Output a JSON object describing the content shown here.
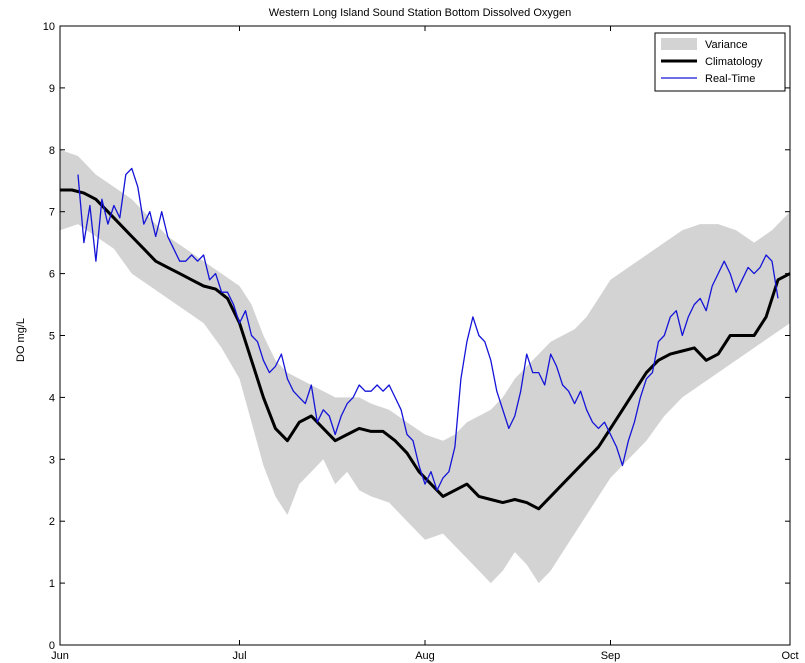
{
  "chart_data": {
    "type": "line",
    "title": "Western Long Island Sound Station Bottom Dissolved Oxygen",
    "xlabel": "",
    "ylabel": "DO mg/L",
    "xlim": [
      0,
      122
    ],
    "ylim": [
      0,
      10
    ],
    "x_ticks": [
      {
        "value": 0,
        "label": "Jun"
      },
      {
        "value": 30,
        "label": "Jul"
      },
      {
        "value": 61,
        "label": "Aug"
      },
      {
        "value": 92,
        "label": "Sep"
      },
      {
        "value": 122,
        "label": "Oct"
      }
    ],
    "y_ticks": [
      0,
      1,
      2,
      3,
      4,
      5,
      6,
      7,
      8,
      9,
      10
    ],
    "legend_position": "top-right",
    "grid": false,
    "series": [
      {
        "name": "Variance",
        "kind": "band",
        "color": "#d3d3d3",
        "x": [
          0,
          3,
          6,
          9,
          12,
          15,
          18,
          21,
          24,
          27,
          30,
          32,
          34,
          36,
          38,
          40,
          42,
          44,
          46,
          48,
          50,
          52,
          55,
          58,
          61,
          64,
          66,
          68,
          70,
          72,
          74,
          76,
          78,
          80,
          82,
          84,
          86,
          88,
          90,
          92,
          95,
          98,
          101,
          104,
          107,
          110,
          113,
          116,
          119,
          122
        ],
        "upper": [
          8.0,
          7.9,
          7.6,
          7.4,
          7.2,
          6.9,
          6.6,
          6.4,
          6.2,
          6.0,
          5.8,
          5.5,
          5.0,
          4.6,
          4.4,
          4.3,
          4.2,
          4.1,
          4.0,
          4.0,
          4.0,
          3.9,
          3.8,
          3.6,
          3.4,
          3.3,
          3.4,
          3.6,
          3.7,
          3.8,
          4.0,
          4.3,
          4.5,
          4.7,
          4.9,
          5.0,
          5.1,
          5.3,
          5.6,
          5.9,
          6.1,
          6.3,
          6.5,
          6.7,
          6.8,
          6.8,
          6.7,
          6.5,
          6.7,
          7.0
        ],
        "lower": [
          6.7,
          6.8,
          6.6,
          6.4,
          6.0,
          5.8,
          5.6,
          5.4,
          5.2,
          4.8,
          4.3,
          3.6,
          2.9,
          2.4,
          2.1,
          2.6,
          2.8,
          3.0,
          2.6,
          2.8,
          2.5,
          2.4,
          2.3,
          2.0,
          1.7,
          1.8,
          1.6,
          1.4,
          1.2,
          1.0,
          1.2,
          1.5,
          1.3,
          1.0,
          1.2,
          1.5,
          1.8,
          2.1,
          2.4,
          2.7,
          3.0,
          3.3,
          3.7,
          4.0,
          4.2,
          4.4,
          4.6,
          4.8,
          5.0,
          5.2
        ]
      },
      {
        "name": "Climatology",
        "kind": "line",
        "color": "#000000",
        "x": [
          0,
          2,
          4,
          6,
          8,
          10,
          12,
          14,
          16,
          18,
          20,
          22,
          24,
          26,
          28,
          30,
          32,
          34,
          36,
          38,
          40,
          42,
          44,
          46,
          48,
          50,
          52,
          54,
          56,
          58,
          60,
          62,
          64,
          66,
          68,
          70,
          72,
          74,
          76,
          78,
          80,
          82,
          84,
          86,
          88,
          90,
          92,
          94,
          96,
          98,
          100,
          102,
          104,
          106,
          108,
          110,
          112,
          114,
          116,
          118,
          120,
          122
        ],
        "y": [
          7.35,
          7.35,
          7.3,
          7.2,
          7.0,
          6.8,
          6.6,
          6.4,
          6.2,
          6.1,
          6.0,
          5.9,
          5.8,
          5.75,
          5.6,
          5.2,
          4.6,
          4.0,
          3.5,
          3.3,
          3.6,
          3.7,
          3.5,
          3.3,
          3.4,
          3.5,
          3.45,
          3.45,
          3.3,
          3.1,
          2.8,
          2.6,
          2.4,
          2.5,
          2.6,
          2.4,
          2.35,
          2.3,
          2.35,
          2.3,
          2.2,
          2.4,
          2.6,
          2.8,
          3.0,
          3.2,
          3.5,
          3.8,
          4.1,
          4.4,
          4.6,
          4.7,
          4.75,
          4.8,
          4.6,
          4.7,
          5.0,
          5.0,
          5.0,
          5.3,
          5.9,
          6.0
        ]
      },
      {
        "name": "Real-Time",
        "kind": "line",
        "color": "#1414d8",
        "x": [
          3,
          4,
          5,
          6,
          7,
          8,
          9,
          10,
          11,
          12,
          13,
          14,
          15,
          16,
          17,
          18,
          19,
          20,
          21,
          22,
          23,
          24,
          25,
          26,
          27,
          28,
          29,
          30,
          31,
          32,
          33,
          34,
          35,
          36,
          37,
          38,
          39,
          40,
          41,
          42,
          43,
          44,
          45,
          46,
          47,
          48,
          49,
          50,
          51,
          52,
          53,
          54,
          55,
          56,
          57,
          58,
          59,
          60,
          61,
          62,
          63,
          64,
          65,
          66,
          67,
          68,
          69,
          70,
          71,
          72,
          73,
          74,
          75,
          76,
          77,
          78,
          79,
          80,
          81,
          82,
          83,
          84,
          85,
          86,
          87,
          88,
          89,
          90,
          91,
          92,
          93,
          94,
          95,
          96,
          97,
          98,
          99,
          100,
          101,
          102,
          103,
          104,
          105,
          106,
          107,
          108,
          109,
          110,
          111,
          112,
          113,
          114,
          115,
          116,
          117,
          118,
          119,
          120
        ],
        "y": [
          7.6,
          6.5,
          7.1,
          6.2,
          7.2,
          6.8,
          7.1,
          6.9,
          7.6,
          7.7,
          7.4,
          6.8,
          7.0,
          6.6,
          7.0,
          6.6,
          6.4,
          6.2,
          6.2,
          6.3,
          6.2,
          6.3,
          5.9,
          6.0,
          5.7,
          5.7,
          5.5,
          5.2,
          5.4,
          5.0,
          4.9,
          4.6,
          4.4,
          4.5,
          4.7,
          4.3,
          4.1,
          4.0,
          3.9,
          4.2,
          3.6,
          3.8,
          3.7,
          3.4,
          3.7,
          3.9,
          4.0,
          4.2,
          4.1,
          4.1,
          4.2,
          4.1,
          4.2,
          4.0,
          3.8,
          3.4,
          3.3,
          2.9,
          2.6,
          2.8,
          2.5,
          2.7,
          2.8,
          3.2,
          4.3,
          4.9,
          5.3,
          5.0,
          4.9,
          4.6,
          4.1,
          3.8,
          3.5,
          3.7,
          4.1,
          4.7,
          4.4,
          4.4,
          4.2,
          4.7,
          4.5,
          4.2,
          4.1,
          3.9,
          4.1,
          3.8,
          3.6,
          3.5,
          3.6,
          3.4,
          3.2,
          2.9,
          3.3,
          3.6,
          4.0,
          4.3,
          4.4,
          4.9,
          5.0,
          5.3,
          5.4,
          5.0,
          5.3,
          5.5,
          5.6,
          5.4,
          5.8,
          6.0,
          6.2,
          6.0,
          5.7,
          5.9,
          6.1,
          6.0,
          6.1,
          6.3,
          6.2,
          5.6
        ]
      }
    ]
  }
}
